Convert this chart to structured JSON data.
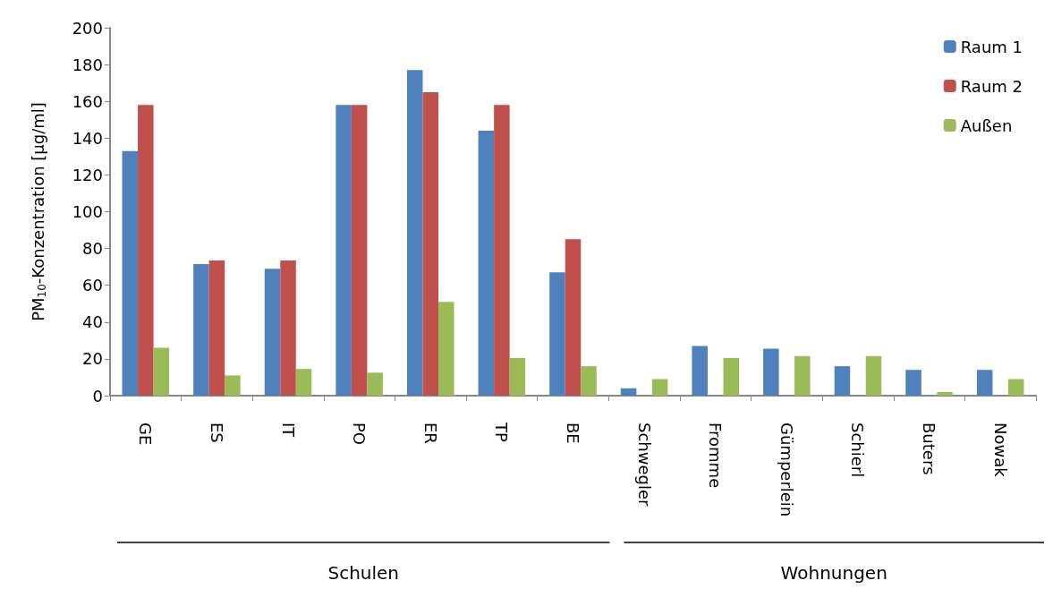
{
  "chart_data": {
    "type": "bar",
    "ylabel": "PM$_{10}$-Konzentration [µg/ml]",
    "categories": [
      "GE",
      "ES",
      "IT",
      "PO",
      "ER",
      "TP",
      "BE",
      "Schwegler",
      "Fromme",
      "Gümperlein",
      "Schierl",
      "Buters",
      "Nowak"
    ],
    "series": [
      {
        "name": "Raum 1",
        "color": "#4f81bd",
        "values": [
          133,
          71.5,
          69,
          158,
          177,
          144,
          67,
          4,
          27,
          25.5,
          16,
          14,
          14
        ]
      },
      {
        "name": "Raum 2",
        "color": "#c0504d",
        "values": [
          158,
          73.5,
          73.5,
          158,
          165,
          158,
          85,
          null,
          null,
          null,
          null,
          null,
          null
        ]
      },
      {
        "name": "Außen",
        "color": "#9bbb59",
        "values": [
          26,
          11,
          14.5,
          12.5,
          51,
          20.5,
          16,
          9,
          20.5,
          21.5,
          21.5,
          2,
          9
        ]
      }
    ],
    "ylim": [
      0,
      200
    ],
    "yticks": [
      0,
      20,
      40,
      60,
      80,
      100,
      120,
      140,
      160,
      180,
      200
    ],
    "grid": false,
    "legend": "top right",
    "annotations": [
      "Schulen",
      "Wohnungen"
    ]
  }
}
